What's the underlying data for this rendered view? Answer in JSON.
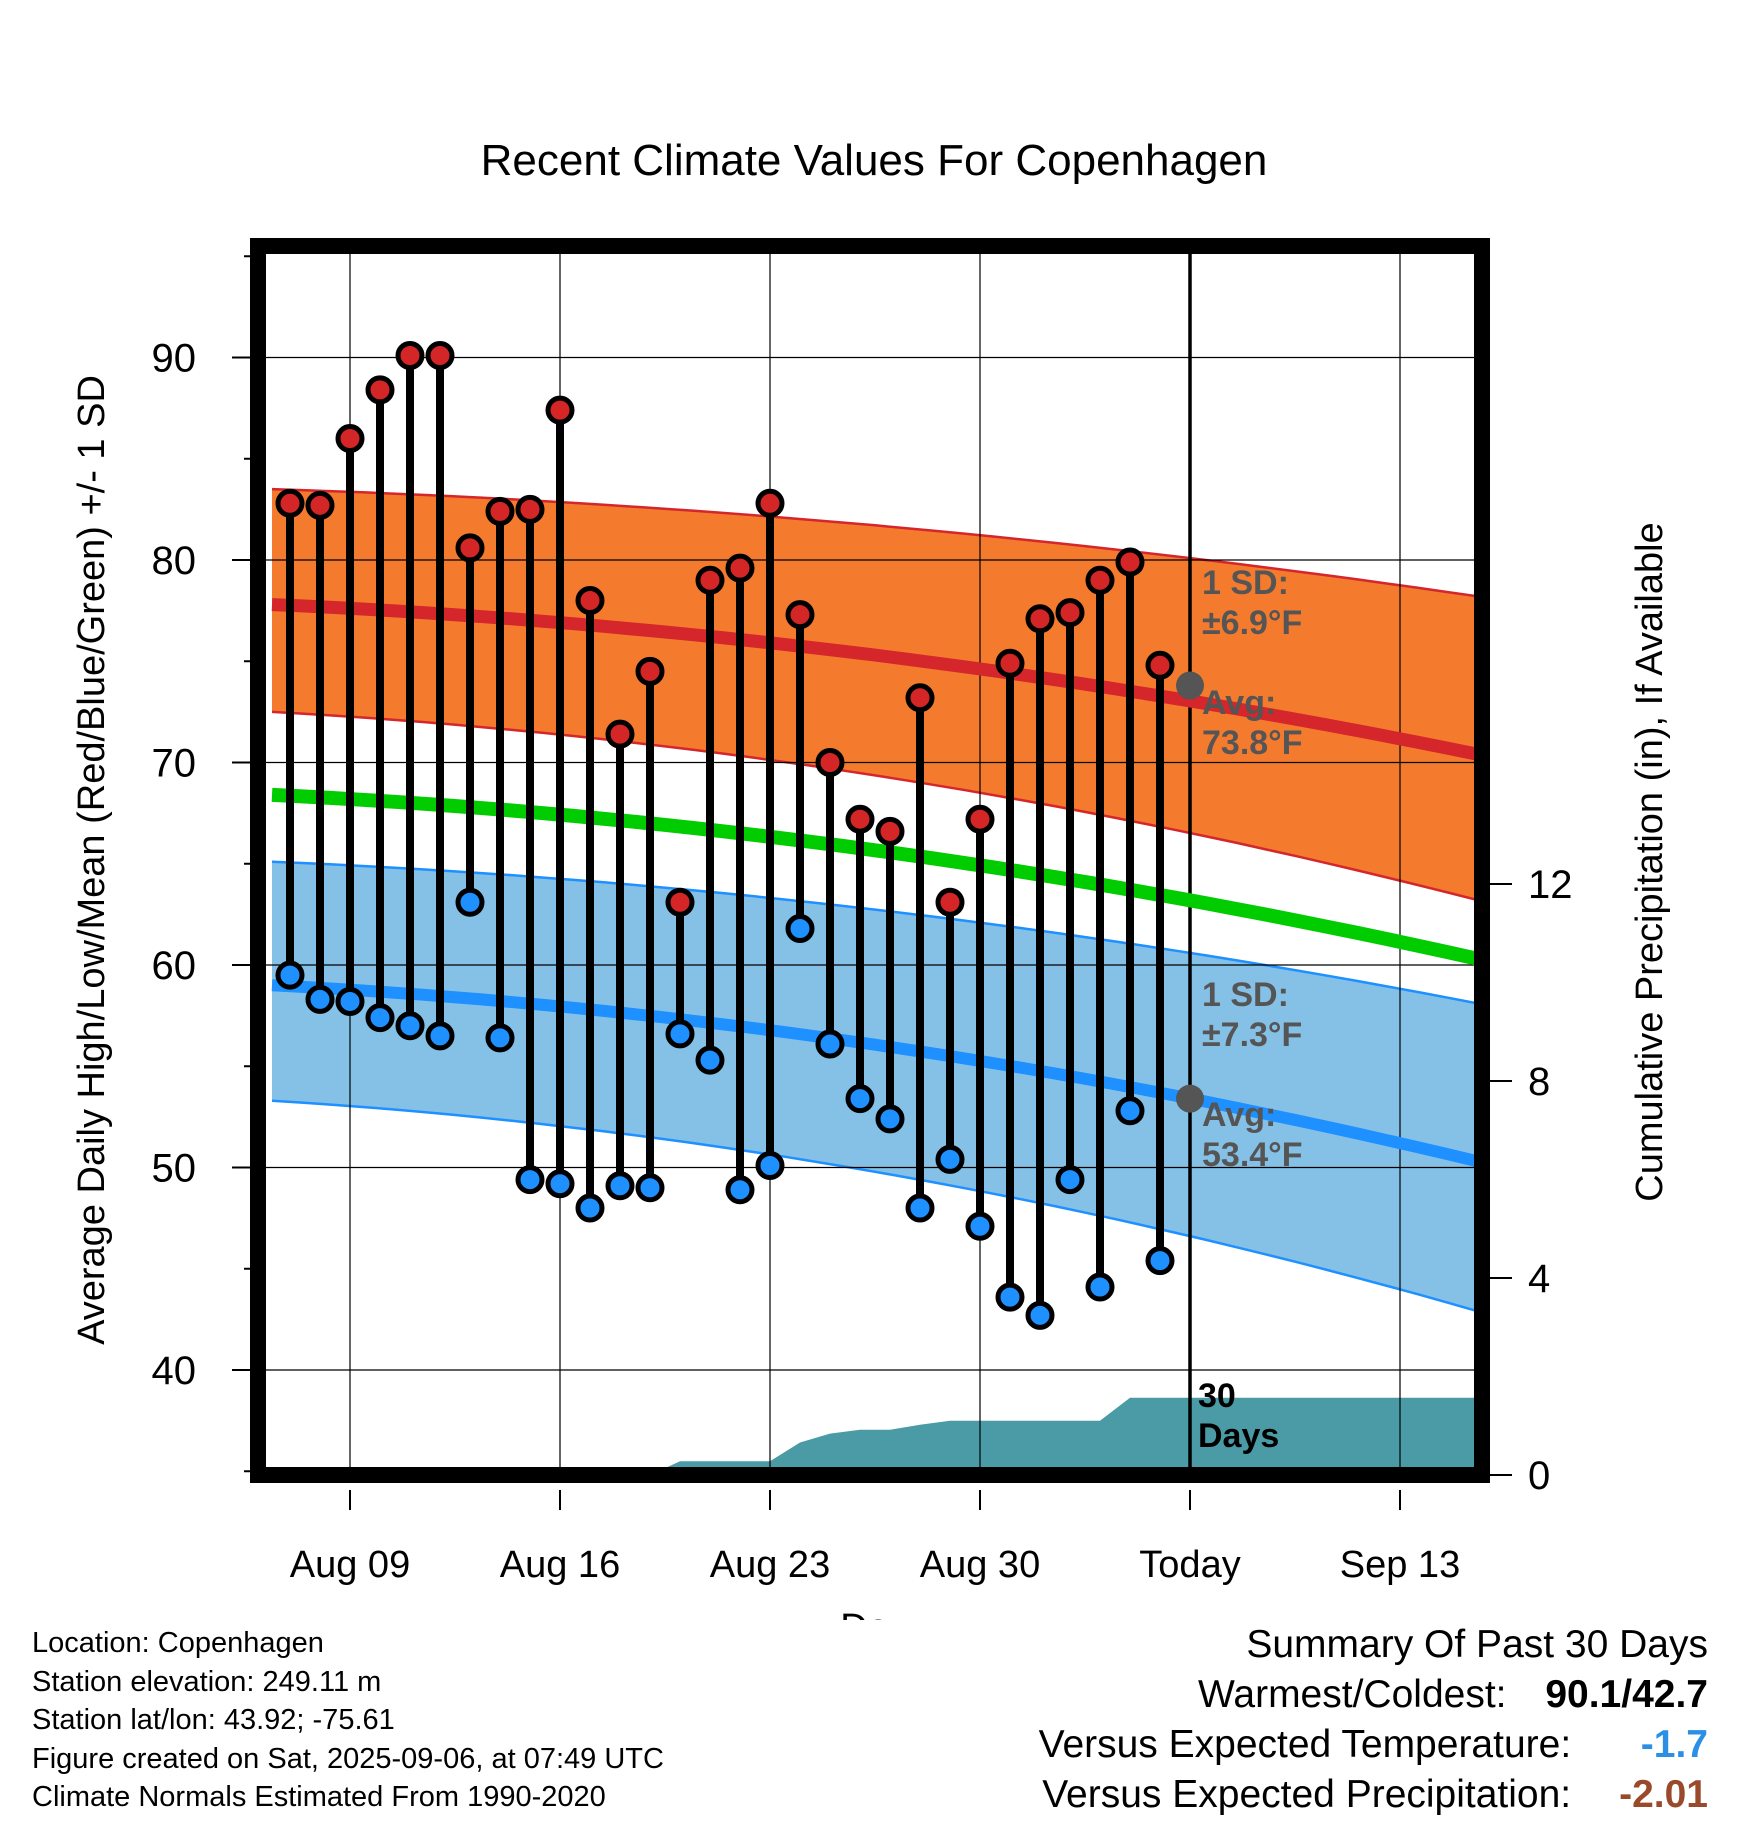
{
  "chart_data": {
    "type": "line",
    "title": "Recent Climate Values For Copenhagen",
    "xlabel": "Day",
    "ylabel": "Average Daily High/Low/Mean (Red/Blue/Green) +/- 1 SD",
    "y2label": "Cumulative Precipitation (in), If Available",
    "x_tick_labels": [
      "Aug 09",
      "Aug 16",
      "Aug 23",
      "Aug 30",
      "Today",
      "Sep 13"
    ],
    "y_ticks": [
      40,
      50,
      60,
      70,
      80,
      90
    ],
    "y2_ticks": [
      0,
      4,
      8,
      12
    ],
    "ylim": [
      35,
      95
    ],
    "y2lim": [
      0,
      24
    ],
    "grid": true,
    "days": [
      "2025-08-07",
      "2025-08-08",
      "2025-08-09",
      "2025-08-10",
      "2025-08-11",
      "2025-08-12",
      "2025-08-13",
      "2025-08-14",
      "2025-08-15",
      "2025-08-16",
      "2025-08-17",
      "2025-08-18",
      "2025-08-19",
      "2025-08-20",
      "2025-08-21",
      "2025-08-22",
      "2025-08-23",
      "2025-08-24",
      "2025-08-25",
      "2025-08-26",
      "2025-08-27",
      "2025-08-28",
      "2025-08-29",
      "2025-08-30",
      "2025-08-31",
      "2025-09-01",
      "2025-09-02",
      "2025-09-03",
      "2025-09-04",
      "2025-09-05"
    ],
    "series": [
      {
        "name": "High",
        "color": "#cc2222",
        "values": [
          82.8,
          82.7,
          86.0,
          88.4,
          90.1,
          90.1,
          80.6,
          82.4,
          82.5,
          87.4,
          78.0,
          71.4,
          74.5,
          63.1,
          79.0,
          79.6,
          82.8,
          77.3,
          70.0,
          67.2,
          66.6,
          73.2,
          63.1,
          67.2,
          74.9,
          77.1,
          77.4,
          79.0,
          79.9,
          74.8
        ]
      },
      {
        "name": "Low",
        "color": "#1e90ff",
        "values": [
          59.5,
          58.3,
          58.2,
          57.4,
          57.0,
          56.5,
          63.1,
          56.4,
          49.4,
          49.2,
          48.0,
          49.1,
          49.0,
          56.6,
          55.3,
          48.9,
          50.1,
          61.8,
          56.1,
          53.4,
          52.4,
          48.0,
          50.4,
          47.1,
          43.6,
          42.7,
          49.4,
          44.1,
          52.8,
          45.4
        ]
      }
    ],
    "normals": {
      "x_range": [
        "2025-08-06",
        "2025-09-15"
      ],
      "high_avg": [
        77.8,
        70.4
      ],
      "high_sd_upper": [
        83.5,
        78.2
      ],
      "high_sd_lower": [
        72.5,
        63.2
      ],
      "low_avg": [
        59.0,
        50.3
      ],
      "low_sd_upper": [
        65.1,
        58.1
      ],
      "low_sd_lower": [
        53.3,
        42.9
      ],
      "mean": [
        68.4,
        60.3
      ]
    },
    "precip_cumulative": {
      "x": [
        "2025-08-07",
        "2025-08-19",
        "2025-08-20",
        "2025-08-23",
        "2025-08-24",
        "2025-08-25",
        "2025-08-26",
        "2025-08-27",
        "2025-08-28",
        "2025-08-29",
        "2025-08-30",
        "2025-09-03",
        "2025-09-04",
        "2025-09-15"
      ],
      "values": [
        0,
        0,
        0.28,
        0.28,
        0.66,
        0.84,
        0.92,
        0.92,
        1.02,
        1.1,
        1.1,
        1.1,
        1.57,
        1.57
      ]
    },
    "annotations": {
      "high_sd": "1 SD:\n±6.9°F",
      "high_avg": "Avg:\n73.8°F",
      "low_sd": "1 SD:\n±7.3°F",
      "low_avg": "Avg:\n53.4°F",
      "window": "30\nDays",
      "today_high_avg": 73.8,
      "today_low_avg": 53.4
    },
    "colors": {
      "high_band": "#f47b2e",
      "high_line": "#d4262b",
      "low_band": "#85c1e6",
      "low_line": "#1e90ff",
      "mean_line": "#00cc00",
      "precip": "#4a9ba5",
      "annotation_text": "#555555"
    }
  },
  "metadata": {
    "location": "Location: Copenhagen",
    "elevation": "Station elevation: 249.11 m",
    "latlon": "Station lat/lon: 43.92; -75.61",
    "created": "Figure created on Sat, 2025-09-06, at 07:49 UTC",
    "normals": "Climate Normals Estimated From 1990-2020"
  },
  "summary": {
    "title": "Summary Of Past 30 Days",
    "warmest_label": "Warmest/Coldest:",
    "warmest_value": "90.1",
    "slash": "/",
    "coldest_value": "42.7",
    "temp_label": "Versus Expected Temperature:",
    "temp_value": "-1.7",
    "temp_color": "#2a8fe5",
    "precip_label": "Versus Expected Precipitation:",
    "precip_value": "-2.01",
    "precip_color": "#9a4a2a"
  }
}
